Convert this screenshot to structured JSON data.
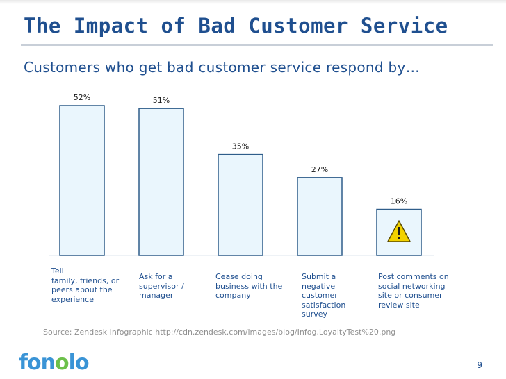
{
  "title": "The Impact of Bad Customer Service",
  "subtitle": "Customers who get bad customer service respond by…",
  "chart_data": {
    "type": "bar",
    "title": "Customers who get bad customer service respond by…",
    "categories": [
      [
        "Tell",
        "family, friends, or",
        "peers about the",
        "experience"
      ],
      [
        "Ask for a",
        "supervisor /",
        "manager"
      ],
      [
        "Cease doing",
        "business with the",
        "company"
      ],
      [
        "Submit a",
        "negative",
        "customer",
        "satisfaction",
        "survey"
      ],
      [
        "Post comments on",
        "social networking",
        "site or consumer",
        "review site"
      ]
    ],
    "values": [
      52,
      51,
      35,
      27,
      16
    ],
    "value_labels": [
      "52%",
      "51%",
      "35%",
      "27%",
      "16%"
    ],
    "unit": "%",
    "ylim": [
      0,
      52
    ],
    "xlabel": "",
    "ylabel": "",
    "grid": false,
    "annotations": [
      "warning icon on last bar"
    ]
  },
  "source": "Source: Zendesk Infographic http://cdn.zendesk.com/images/blog/Infog.LoyaltyTest%20.png",
  "logo": {
    "text_left": "fon",
    "text_eye": "o",
    "text_right": "lo"
  },
  "page_number": "9",
  "colors": {
    "title": "#1f4f8f",
    "bar_fill": "#eaf6fd",
    "bar_stroke": "#2f5d8a",
    "warning": "#f2d200"
  },
  "icons": {
    "warning": "warning-icon"
  }
}
